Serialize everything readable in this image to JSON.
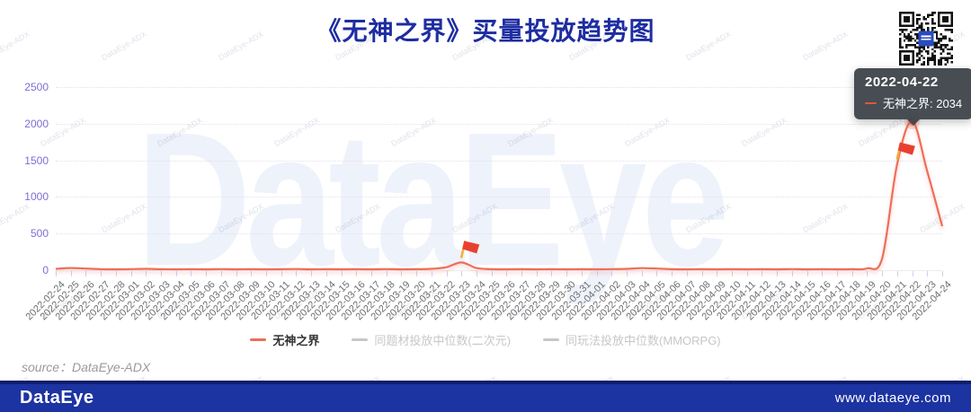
{
  "title": "《无神之界》买量投放趋势图",
  "watermark_text": "DataEye",
  "micro_watermark_text": "DataEye-ADX",
  "source_text": "source：DataEye-ADX",
  "footer": {
    "logo_text": "DataEye",
    "website": "www.dataeye.com"
  },
  "tooltip": {
    "date": "2022-04-22",
    "series_label": "无神之界",
    "value": "2034",
    "entry": "无神之界: 2034"
  },
  "legend": {
    "items": [
      {
        "label": "无神之界",
        "active": true
      },
      {
        "label": "同题材投放中位数(二次元)",
        "active": false
      },
      {
        "label": "同玩法投放中位数(MMORPG)",
        "active": false
      }
    ]
  },
  "colors": {
    "accent": "#ee6e58",
    "title": "#1e2da1",
    "y_label": "#7b6fd6",
    "x_label": "#6e6e6e",
    "grid": "#e2e2ea",
    "tick": "#c9d2f2",
    "tooltip_bg": "#40464c",
    "flag_red": "#e8402f",
    "flag_pole": "#f2b03c",
    "legend_inactive": "#c7c7c7",
    "footer_bg": "#1c33a2",
    "footer_strip": "#0f1e6e",
    "qr_center": "#2a4bbf"
  },
  "chart_data": {
    "type": "line",
    "title": "《无神之界》买量投放趋势图",
    "xlabel": "",
    "ylabel": "",
    "ylim": [
      0,
      2500
    ],
    "yticks": [
      0,
      500,
      1000,
      1500,
      2000,
      2500
    ],
    "grid": "horizontal-dotted",
    "legend_position": "bottom",
    "smooth": true,
    "x": [
      "2022-02-24",
      "2022-02-25",
      "2022-02-26",
      "2022-02-27",
      "2022-02-28",
      "2022-03-01",
      "2022-03-02",
      "2022-03-03",
      "2022-03-04",
      "2022-03-05",
      "2022-03-06",
      "2022-03-07",
      "2022-03-08",
      "2022-03-09",
      "2022-03-10",
      "2022-03-11",
      "2022-03-12",
      "2022-03-13",
      "2022-03-14",
      "2022-03-15",
      "2022-03-16",
      "2022-03-17",
      "2022-03-18",
      "2022-03-19",
      "2022-03-20",
      "2022-03-21",
      "2022-03-22",
      "2022-03-23",
      "2022-03-24",
      "2022-03-25",
      "2022-03-26",
      "2022-03-27",
      "2022-03-28",
      "2022-03-29",
      "2022-03-30",
      "2022-03-31",
      "2022-04-01",
      "2022-04-02",
      "2022-04-03",
      "2022-04-04",
      "2022-04-05",
      "2022-04-06",
      "2022-04-07",
      "2022-04-08",
      "2022-04-09",
      "2022-04-10",
      "2022-04-11",
      "2022-04-12",
      "2022-04-13",
      "2022-04-14",
      "2022-04-15",
      "2022-04-16",
      "2022-04-17",
      "2022-04-18",
      "2022-04-19",
      "2022-04-20",
      "2022-04-21",
      "2022-04-22",
      "2022-04-23",
      "2022-04-24"
    ],
    "series": [
      {
        "name": "无神之界",
        "color": "#ee6e58",
        "values": [
          18,
          30,
          22,
          14,
          12,
          15,
          18,
          14,
          12,
          14,
          12,
          15,
          12,
          14,
          12,
          14,
          16,
          12,
          14,
          12,
          14,
          12,
          15,
          12,
          14,
          18,
          40,
          105,
          30,
          14,
          12,
          14,
          12,
          14,
          12,
          14,
          12,
          15,
          18,
          28,
          22,
          14,
          12,
          14,
          12,
          14,
          12,
          14,
          12,
          15,
          12,
          14,
          12,
          14,
          25,
          160,
          1450,
          2034,
          1350,
          600
        ]
      },
      {
        "name": "同题材投放中位数(二次元)",
        "hidden": true,
        "values": []
      },
      {
        "name": "同玩法投放中位数(MMORPG)",
        "hidden": true,
        "values": []
      }
    ],
    "highlight": {
      "x": "2022-04-22",
      "value": 2034
    },
    "markers": [
      {
        "type": "flag",
        "x": "2022-03-23"
      },
      {
        "type": "flag",
        "x": "2022-04-21"
      }
    ]
  }
}
